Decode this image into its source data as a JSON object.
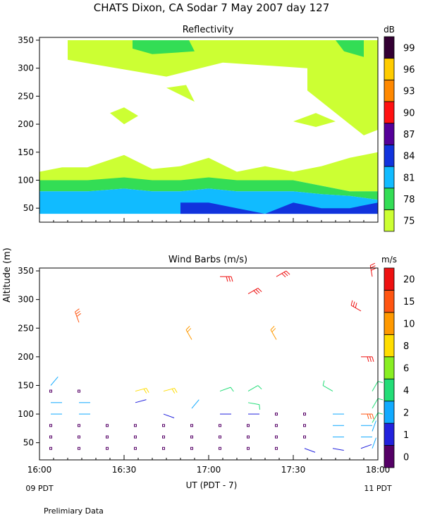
{
  "header": {
    "title": "CHATS Dixon, CA  Sodar    7 May 2007   day 127",
    "footnote": "Prelimiary Data",
    "ylabel": "Altitude (m)"
  },
  "chart_data": [
    {
      "type": "heatmap",
      "title": "Reflectivity",
      "xlabel": "",
      "ylabel": "Altitude (m)",
      "xlim": [
        "16:00",
        "18:00"
      ],
      "ylim": [
        25,
        355
      ],
      "yticks": [
        "50",
        "100",
        "150",
        "200",
        "250",
        "300",
        "350"
      ],
      "colorbar": {
        "unit": "dB",
        "labels": [
          "75",
          "78",
          "81",
          "84",
          "87",
          "90",
          "93",
          "96",
          "99"
        ],
        "colors": [
          "#ccff33",
          "#33dd55",
          "#11bbff",
          "#1133dd",
          "#550099",
          "#ff1111",
          "#ff8800",
          "#ffcc00",
          "#330033"
        ]
      },
      "bands": [
        {
          "level": "75",
          "color": "#ccff33",
          "x": [
            "16:00",
            "16:08",
            "16:17",
            "16:30",
            "16:40",
            "16:50",
            "17:00",
            "17:10",
            "17:20",
            "17:30",
            "17:40",
            "17:50",
            "18:00"
          ],
          "top": [
            115,
            123,
            123,
            145,
            120,
            125,
            140,
            115,
            125,
            115,
            125,
            140,
            150
          ],
          "bottom": [
            100,
            100,
            100,
            100,
            100,
            100,
            100,
            100,
            100,
            100,
            90,
            80,
            80
          ]
        },
        {
          "level": "78",
          "color": "#33dd55",
          "x": [
            "16:00",
            "16:08",
            "16:17",
            "16:30",
            "16:40",
            "16:50",
            "17:00",
            "17:10",
            "17:20",
            "17:30",
            "17:40",
            "17:50",
            "18:00"
          ],
          "top": [
            100,
            100,
            100,
            105,
            100,
            100,
            105,
            100,
            100,
            100,
            90,
            80,
            80
          ],
          "bottom": [
            80,
            80,
            80,
            85,
            80,
            80,
            85,
            80,
            80,
            80,
            75,
            72,
            65
          ]
        },
        {
          "level": "81",
          "color": "#11bbff",
          "x": [
            "16:00",
            "16:08",
            "16:17",
            "16:30",
            "16:40",
            "16:50",
            "17:00",
            "17:10",
            "17:20",
            "17:30",
            "17:40",
            "17:50",
            "18:00"
          ],
          "top": [
            80,
            80,
            80,
            85,
            80,
            80,
            85,
            80,
            80,
            80,
            75,
            72,
            65
          ],
          "bottom": [
            40,
            40,
            40,
            40,
            40,
            40,
            40,
            40,
            40,
            40,
            40,
            40,
            40
          ]
        },
        {
          "level": "84",
          "color": "#1133dd",
          "x": [
            "16:50",
            "17:00",
            "17:10",
            "17:20",
            "17:30",
            "17:40",
            "17:50",
            "18:00"
          ],
          "top": [
            60,
            60,
            50,
            40,
            60,
            50,
            50,
            60
          ],
          "bottom": [
            40,
            40,
            40,
            40,
            40,
            40,
            40,
            40
          ]
        }
      ],
      "upper_patches": [
        {
          "level": "75",
          "color": "#ccff33",
          "x": [
            "16:10",
            "17:55",
            "17:55",
            "17:45",
            "17:35",
            "17:05",
            "16:45",
            "16:10"
          ],
          "y": [
            350,
            350,
            330,
            310,
            300,
            310,
            285,
            315
          ]
        },
        {
          "level": "75",
          "color": "#ccff33",
          "x": [
            "17:35",
            "18:00",
            "18:00",
            "17:55",
            "17:35"
          ],
          "y": [
            350,
            350,
            190,
            180,
            260
          ]
        },
        {
          "level": "75",
          "color": "#ccff33",
          "x": [
            "16:25",
            "16:30",
            "16:35",
            "16:30"
          ],
          "y": [
            220,
            200,
            215,
            230
          ]
        },
        {
          "level": "75",
          "color": "#ccff33",
          "x": [
            "16:45",
            "16:55",
            "16:52"
          ],
          "y": [
            265,
            240,
            270
          ]
        },
        {
          "level": "75",
          "color": "#ccff33",
          "x": [
            "17:30",
            "17:38",
            "17:45",
            "17:38"
          ],
          "y": [
            205,
            195,
            205,
            220
          ]
        },
        {
          "level": "78",
          "color": "#33dd55",
          "x": [
            "16:33",
            "16:53",
            "16:55",
            "16:40",
            "16:33"
          ],
          "y": [
            350,
            350,
            330,
            325,
            335
          ]
        },
        {
          "level": "78",
          "color": "#33dd55",
          "x": [
            "17:45",
            "17:55",
            "17:55",
            "17:48"
          ],
          "y": [
            350,
            350,
            320,
            330
          ]
        }
      ]
    },
    {
      "type": "scatter",
      "title": "Wind Barbs (m/s)",
      "xlabel": "UT  (PDT - 7)",
      "ylabel": "Altitude (m)",
      "xlim": [
        "16:00",
        "18:00"
      ],
      "ylim": [
        20,
        355
      ],
      "xticks": [
        "16:00",
        "16:30",
        "17:00",
        "17:30",
        "18:00"
      ],
      "xtick_sublabels": {
        "16:00": "09 PDT",
        "18:00": "11 PDT"
      },
      "yticks": [
        "50",
        "100",
        "150",
        "200",
        "250",
        "300",
        "350"
      ],
      "colorbar": {
        "unit": "m/s",
        "labels": [
          "0",
          "1",
          "2",
          "4",
          "6",
          "8",
          "10",
          "15",
          "20"
        ],
        "colors": [
          "#550066",
          "#2222dd",
          "#11aaff",
          "#22dd77",
          "#88ee22",
          "#ffdd00",
          "#ff9900",
          "#ff5511",
          "#ee1111"
        ]
      },
      "barbs": [
        {
          "t": "16:04",
          "z": 40,
          "speed": 0.3,
          "dir": 0
        },
        {
          "t": "16:04",
          "z": 60,
          "speed": 0.3,
          "dir": 0
        },
        {
          "t": "16:04",
          "z": 80,
          "speed": 0.3,
          "dir": 0
        },
        {
          "t": "16:04",
          "z": 100,
          "speed": 2,
          "dir": 90
        },
        {
          "t": "16:04",
          "z": 120,
          "speed": 2,
          "dir": 90
        },
        {
          "t": "16:04",
          "z": 140,
          "speed": 0.3,
          "dir": 0
        },
        {
          "t": "16:04",
          "z": 150,
          "speed": 3,
          "dir": 40
        },
        {
          "t": "16:14",
          "z": 40,
          "speed": 0.3,
          "dir": 0
        },
        {
          "t": "16:14",
          "z": 60,
          "speed": 0.3,
          "dir": 0
        },
        {
          "t": "16:14",
          "z": 80,
          "speed": 0.3,
          "dir": 0
        },
        {
          "t": "16:14",
          "z": 100,
          "speed": 2,
          "dir": 90
        },
        {
          "t": "16:14",
          "z": 120,
          "speed": 2,
          "dir": 90
        },
        {
          "t": "16:14",
          "z": 140,
          "speed": 0.3,
          "dir": 0
        },
        {
          "t": "16:14",
          "z": 260,
          "speed": 15,
          "dir": 340
        },
        {
          "t": "16:24",
          "z": 40,
          "speed": 0.3,
          "dir": 0
        },
        {
          "t": "16:24",
          "z": 60,
          "speed": 0.3,
          "dir": 0
        },
        {
          "t": "16:24",
          "z": 80,
          "speed": 0.3,
          "dir": 0
        },
        {
          "t": "16:34",
          "z": 40,
          "speed": 0.3,
          "dir": 0
        },
        {
          "t": "16:34",
          "z": 60,
          "speed": 0.3,
          "dir": 0
        },
        {
          "t": "16:34",
          "z": 80,
          "speed": 0.3,
          "dir": 0
        },
        {
          "t": "16:34",
          "z": 120,
          "speed": 1,
          "dir": 75
        },
        {
          "t": "16:34",
          "z": 140,
          "speed": 8,
          "dir": 75
        },
        {
          "t": "16:44",
          "z": 40,
          "speed": 0.3,
          "dir": 0
        },
        {
          "t": "16:44",
          "z": 60,
          "speed": 0.3,
          "dir": 0
        },
        {
          "t": "16:44",
          "z": 80,
          "speed": 0.3,
          "dir": 0
        },
        {
          "t": "16:44",
          "z": 100,
          "speed": 1,
          "dir": 110
        },
        {
          "t": "16:44",
          "z": 140,
          "speed": 8,
          "dir": 75
        },
        {
          "t": "16:54",
          "z": 40,
          "speed": 0.3,
          "dir": 0
        },
        {
          "t": "16:54",
          "z": 60,
          "speed": 0.3,
          "dir": 0
        },
        {
          "t": "16:54",
          "z": 80,
          "speed": 0.3,
          "dir": 0
        },
        {
          "t": "16:54",
          "z": 110,
          "speed": 2,
          "dir": 40
        },
        {
          "t": "16:54",
          "z": 230,
          "speed": 10,
          "dir": 330
        },
        {
          "t": "17:04",
          "z": 40,
          "speed": 0.3,
          "dir": 0
        },
        {
          "t": "17:04",
          "z": 60,
          "speed": 0.3,
          "dir": 0
        },
        {
          "t": "17:04",
          "z": 80,
          "speed": 0.3,
          "dir": 0
        },
        {
          "t": "17:04",
          "z": 100,
          "speed": 1,
          "dir": 90
        },
        {
          "t": "17:04",
          "z": 140,
          "speed": 5,
          "dir": 70
        },
        {
          "t": "17:04",
          "z": 340,
          "speed": 20,
          "dir": 90
        },
        {
          "t": "17:14",
          "z": 40,
          "speed": 0.3,
          "dir": 0
        },
        {
          "t": "17:14",
          "z": 60,
          "speed": 0.3,
          "dir": 0
        },
        {
          "t": "17:14",
          "z": 80,
          "speed": 0.3,
          "dir": 0
        },
        {
          "t": "17:14",
          "z": 100,
          "speed": 1,
          "dir": 90
        },
        {
          "t": "17:14",
          "z": 120,
          "speed": 4,
          "dir": 100
        },
        {
          "t": "17:14",
          "z": 140,
          "speed": 4,
          "dir": 60
        },
        {
          "t": "17:14",
          "z": 310,
          "speed": 20,
          "dir": 60
        },
        {
          "t": "17:24",
          "z": 40,
          "speed": 0.3,
          "dir": 0
        },
        {
          "t": "17:24",
          "z": 60,
          "speed": 0.3,
          "dir": 0
        },
        {
          "t": "17:24",
          "z": 80,
          "speed": 0.3,
          "dir": 0
        },
        {
          "t": "17:24",
          "z": 100,
          "speed": 0.3,
          "dir": 0
        },
        {
          "t": "17:24",
          "z": 230,
          "speed": 10,
          "dir": 330
        },
        {
          "t": "17:24",
          "z": 340,
          "speed": 20,
          "dir": 60
        },
        {
          "t": "17:34",
          "z": 40,
          "speed": 1,
          "dir": 110
        },
        {
          "t": "17:34",
          "z": 60,
          "speed": 0.3,
          "dir": 0
        },
        {
          "t": "17:34",
          "z": 80,
          "speed": 0.3,
          "dir": 0
        },
        {
          "t": "17:34",
          "z": 100,
          "speed": 0.3,
          "dir": 0
        },
        {
          "t": "17:44",
          "z": 40,
          "speed": 1,
          "dir": 100
        },
        {
          "t": "17:44",
          "z": 60,
          "speed": 2,
          "dir": 90
        },
        {
          "t": "17:44",
          "z": 80,
          "speed": 2,
          "dir": 90
        },
        {
          "t": "17:44",
          "z": 100,
          "speed": 2,
          "dir": 90
        },
        {
          "t": "17:44",
          "z": 140,
          "speed": 4,
          "dir": 300
        },
        {
          "t": "17:54",
          "z": 40,
          "speed": 1,
          "dir": 70
        },
        {
          "t": "17:54",
          "z": 60,
          "speed": 2,
          "dir": 90
        },
        {
          "t": "17:54",
          "z": 80,
          "speed": 2,
          "dir": 90
        },
        {
          "t": "17:54",
          "z": 100,
          "speed": 15,
          "dir": 90
        },
        {
          "t": "17:54",
          "z": 200,
          "speed": 20,
          "dir": 90
        },
        {
          "t": "17:54",
          "z": 280,
          "speed": 20,
          "dir": 300
        },
        {
          "t": "17:58",
          "z": 40,
          "speed": 2,
          "dir": 20
        },
        {
          "t": "17:58",
          "z": 70,
          "speed": 2,
          "dir": 20
        },
        {
          "t": "17:58",
          "z": 85,
          "speed": 4,
          "dir": 30
        },
        {
          "t": "17:58",
          "z": 110,
          "speed": 5,
          "dir": 30
        },
        {
          "t": "17:58",
          "z": 140,
          "speed": 5,
          "dir": 30
        },
        {
          "t": "17:58",
          "z": 340,
          "speed": 20,
          "dir": 350
        }
      ]
    }
  ]
}
